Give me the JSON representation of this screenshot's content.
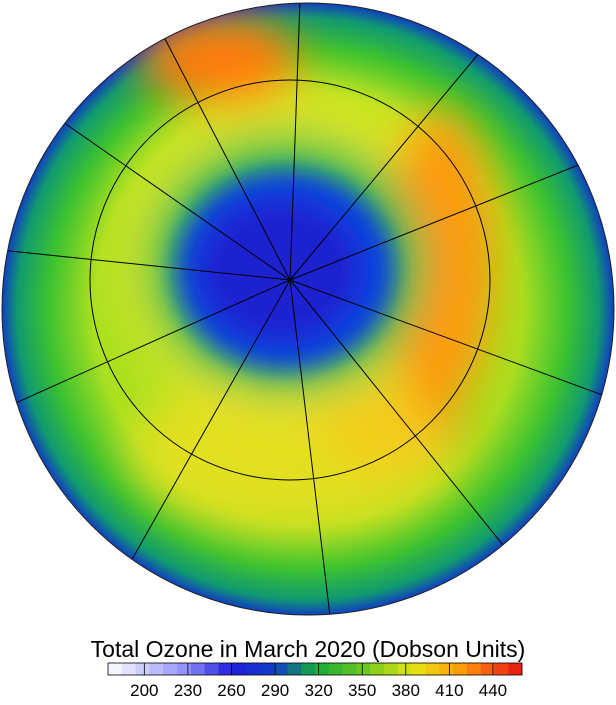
{
  "title": "Total Ozone in March 2020 (Dobson Units)",
  "colorbar": {
    "lim": [
      175,
      460
    ],
    "ticks": [
      200,
      230,
      260,
      290,
      320,
      350,
      380,
      410,
      440
    ]
  }
}
